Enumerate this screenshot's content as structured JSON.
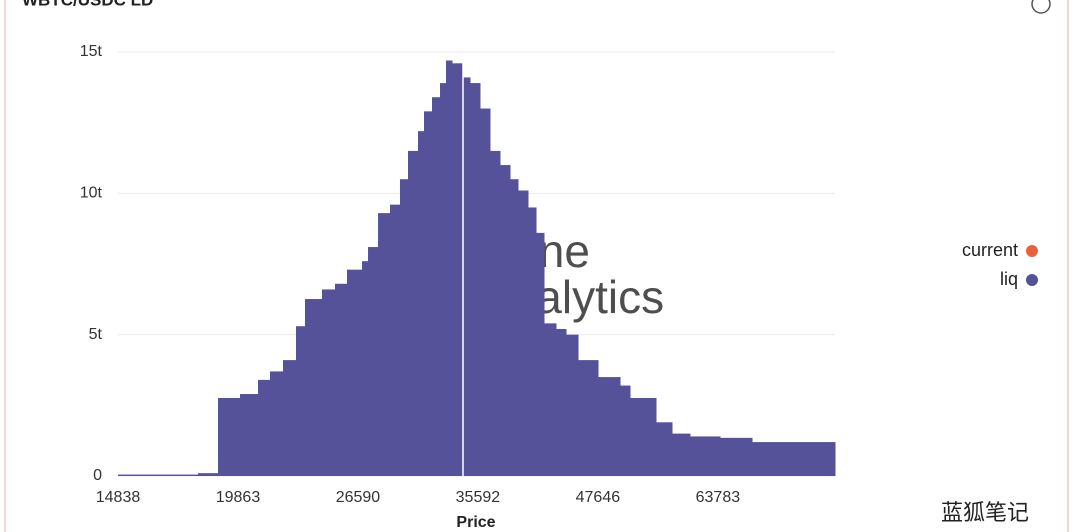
{
  "chart_data": {
    "type": "histogram",
    "title": "WBTC/USDC LD",
    "x_label": "Price",
    "watermark": [
      "Dune",
      "Analytics"
    ],
    "xscale": "log",
    "xlim": [
      14838,
      84793
    ],
    "xticks": [
      14838,
      19863,
      26590,
      35592,
      47646,
      63783
    ],
    "ylim": [
      0,
      15
    ],
    "yticks": [
      0,
      {
        "value": 5,
        "label": "5t"
      },
      {
        "value": 10,
        "label": "10t"
      },
      {
        "value": 15,
        "label": "15t"
      }
    ],
    "grid": true,
    "legend": "right",
    "bins": [
      14838,
      18024,
      18922,
      19962,
      20854,
      21471,
      22160,
      22871,
      23377,
      24364,
      25146,
      25891,
      26854,
      27248,
      27919,
      28744,
      29450,
      30029,
      30768,
      31221,
      31833,
      32460,
      32937,
      33421,
      34326,
      34914,
      35773,
      36653,
      37555,
      38482,
      39236,
      40201,
      40993,
      41796,
      43033,
      44093,
      45400,
      47661,
      50280,
      51516,
      54877,
      57054,
      59604,
      64118,
      69304,
      84793
    ],
    "series": [
      {
        "name": "current",
        "color": "#e8613c",
        "x": 34326
      },
      {
        "name": "liq",
        "color": "#55529a",
        "values": [
          0.05,
          0.1,
          2.76,
          2.9,
          3.4,
          3.7,
          4.1,
          5.3,
          6.26,
          6.6,
          6.8,
          7.3,
          7.6,
          8.1,
          9.3,
          9.6,
          10.5,
          11.5,
          12.2,
          12.9,
          13.4,
          13.9,
          14.7,
          14.6,
          14.1,
          13.9,
          13.0,
          11.5,
          11.0,
          10.5,
          10.1,
          9.5,
          8.6,
          5.4,
          5.2,
          5.0,
          4.1,
          3.5,
          3.2,
          2.76,
          1.9,
          1.5,
          1.4,
          1.35,
          1.2
        ]
      }
    ]
  },
  "footer": {
    "watermark": "蓝狐笔记"
  }
}
